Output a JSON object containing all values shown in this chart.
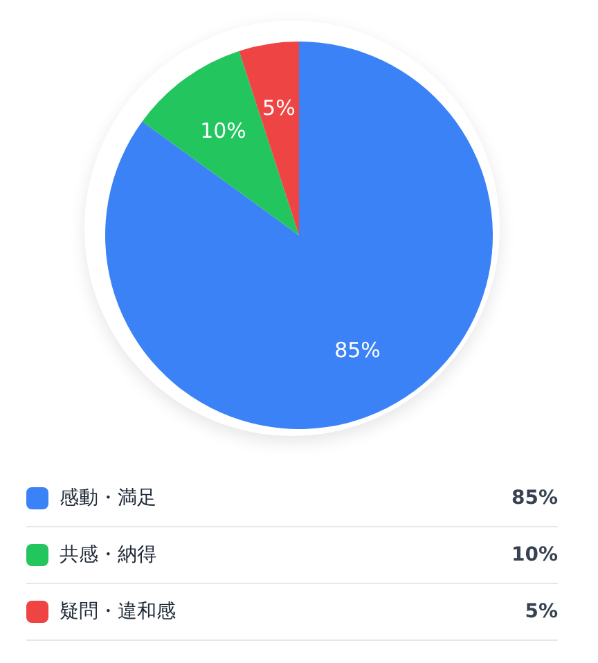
{
  "chart_data": {
    "type": "pie",
    "categories": [
      "感動・満足",
      "共感・納得",
      "疑問・違和感"
    ],
    "values": [
      85,
      10,
      5
    ],
    "colors": [
      "#3b82f6",
      "#22c55e",
      "#ef4444"
    ],
    "value_labels": [
      "85%",
      "10%",
      "5%"
    ],
    "legend": "bottom"
  }
}
